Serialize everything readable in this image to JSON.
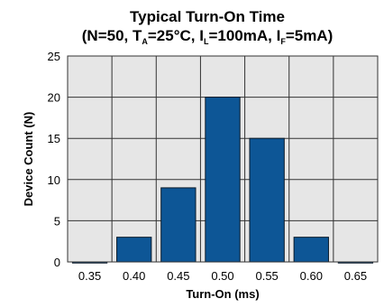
{
  "chart_data": {
    "type": "bar",
    "title": "Typical Turn-On Time",
    "subtitle_parts": {
      "open": "(N=50, T",
      "ta_sub": "A",
      "ta_val": "=25°C, I",
      "il_sub": "L",
      "il_val": "=100mA, I",
      "if_sub": "F",
      "if_val": "=5mA)"
    },
    "xlabel": "Turn-On (ms)",
    "ylabel": "Device Count (N)",
    "x_ticks": [
      "0.35",
      "0.40",
      "0.45",
      "0.50",
      "0.55",
      "0.60",
      "0.65"
    ],
    "y_ticks": [
      "0",
      "5",
      "10",
      "15",
      "20",
      "25"
    ],
    "ylim": [
      0,
      25
    ],
    "categories": [
      "0.35",
      "0.40",
      "0.45",
      "0.50",
      "0.55",
      "0.60",
      "0.65"
    ],
    "values": [
      0,
      3,
      9,
      20,
      15,
      3,
      0
    ],
    "grid": true,
    "colors": {
      "bar": "#0d5696",
      "bar_stroke": "#0a1a2a",
      "plot_bg": "#e6e6e6",
      "grid": "#333333"
    }
  }
}
